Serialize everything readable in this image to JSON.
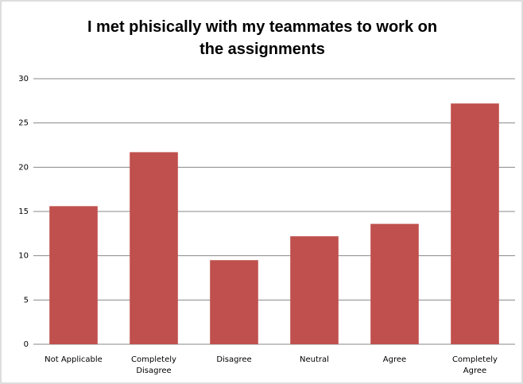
{
  "chart_data": {
    "type": "bar",
    "title": "I met phisically with my teammates to work on the assignments",
    "categories": [
      "Not Applicable",
      "Completely Disagree",
      "Disagree",
      "Neutral",
      "Agree",
      "Completely Agree"
    ],
    "values": [
      15.6,
      21.7,
      9.5,
      12.2,
      13.6,
      27.2
    ],
    "color": "#c0504d",
    "ylim": [
      0,
      30
    ],
    "yticks": [
      0,
      5,
      10,
      15,
      20,
      25,
      30
    ],
    "grid": true
  }
}
